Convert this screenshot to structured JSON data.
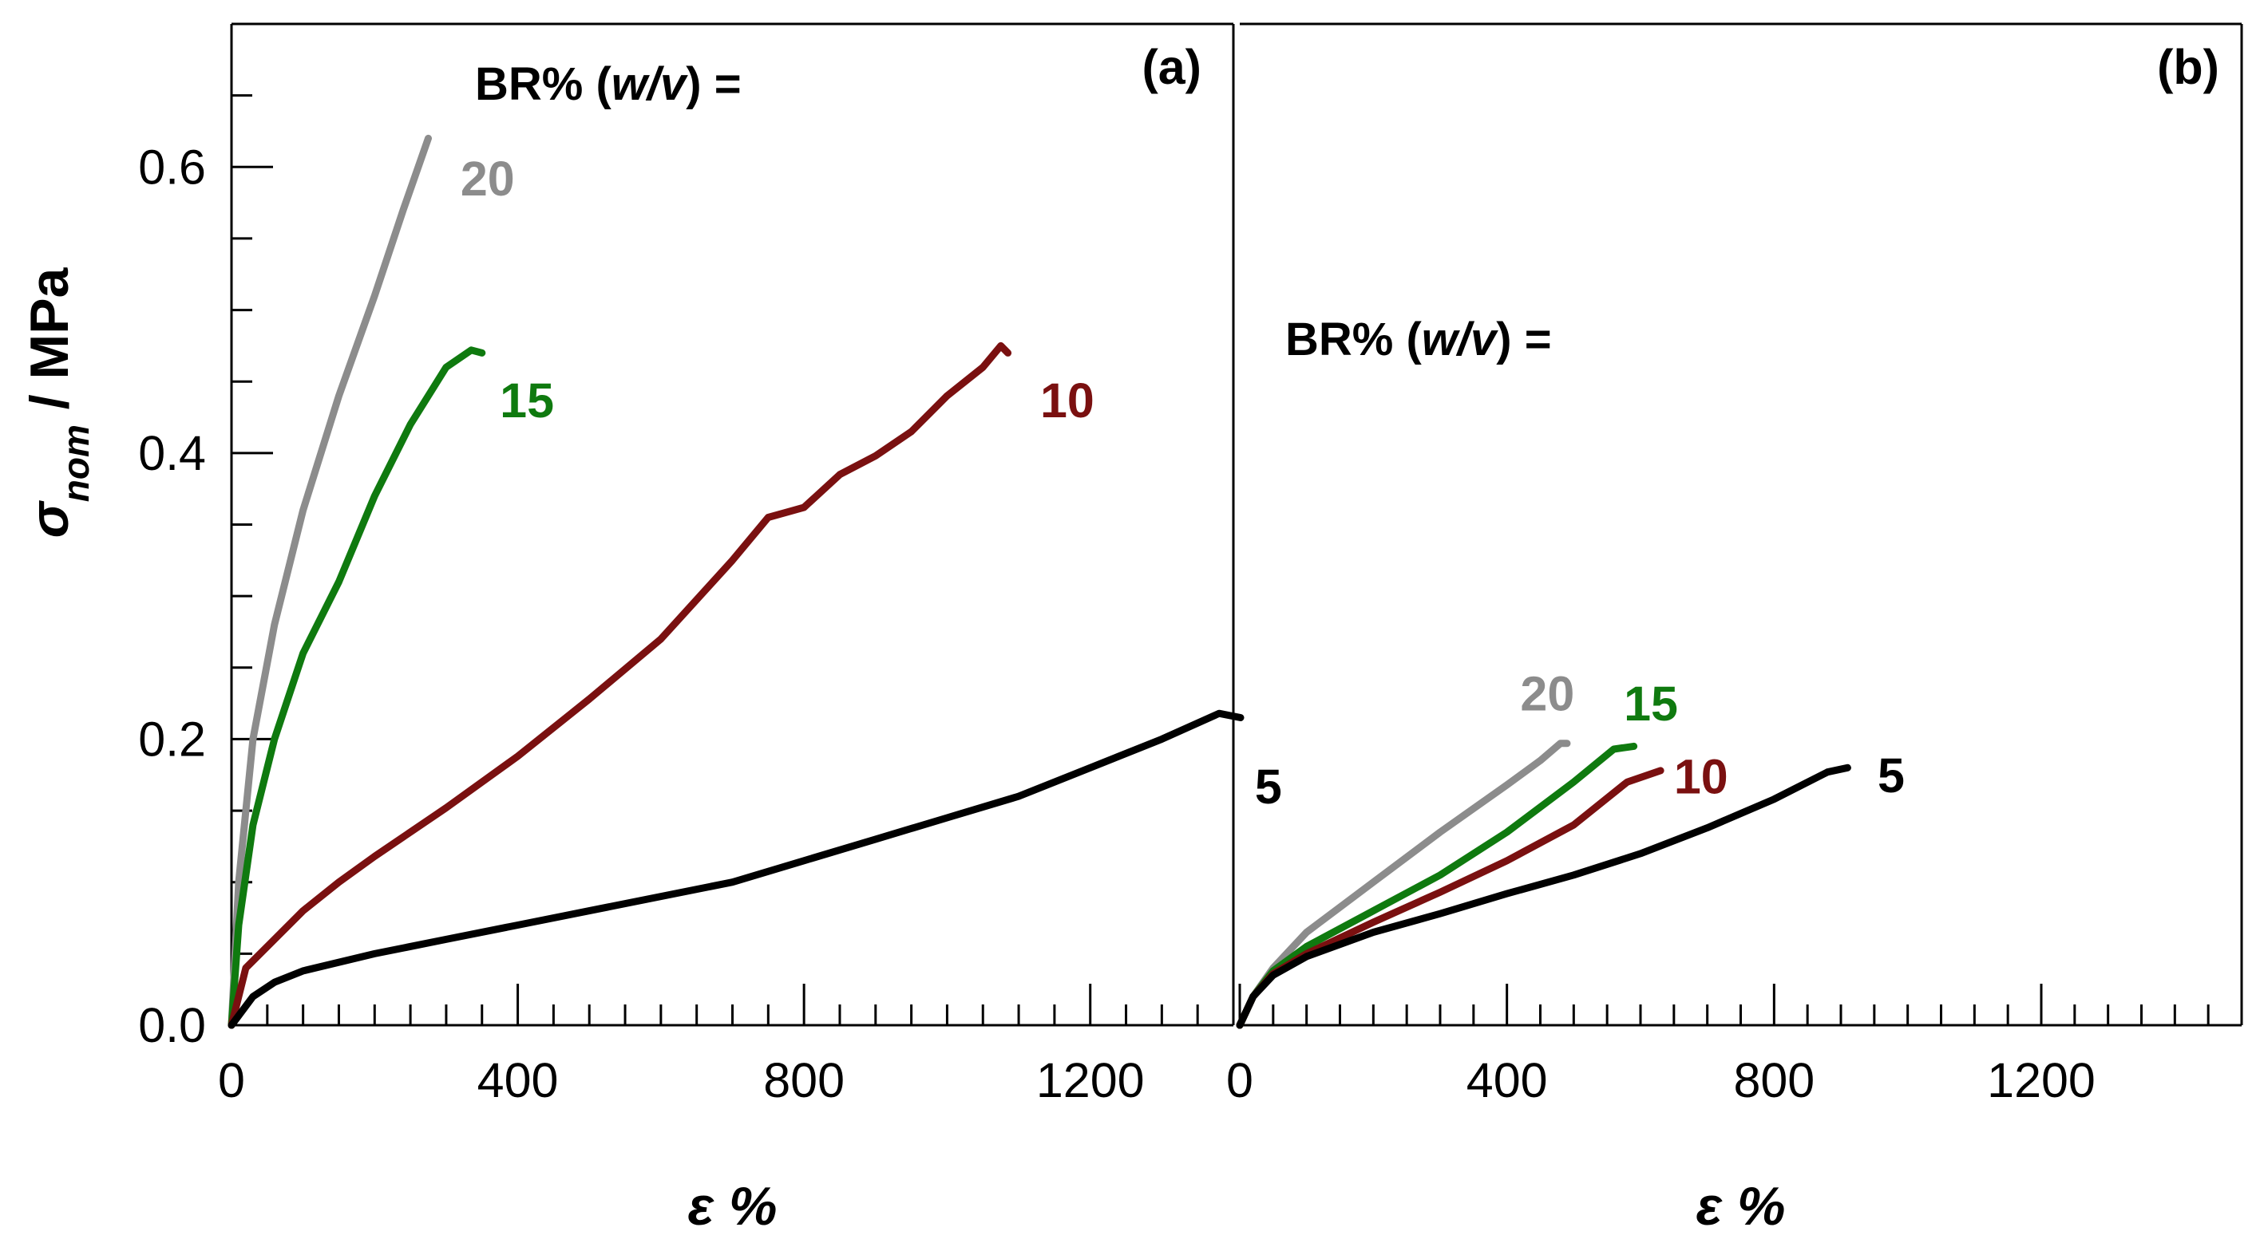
{
  "chart_data": [
    {
      "type": "line",
      "panel_label": "(a)",
      "legend_title": {
        "prefix": "BR% (",
        "italic": "w/v",
        "suffix": ") ="
      },
      "xlabel": "ε %",
      "ylabel": {
        "symbol": "σ",
        "subscript": "nom",
        "rest": " /  MPa"
      },
      "xlim": [
        0,
        1400
      ],
      "ylim": [
        0,
        0.7
      ],
      "xticks": [
        0,
        400,
        800,
        1200
      ],
      "xtick_labels": [
        "0",
        "400",
        "800",
        "1200"
      ],
      "yticks": [
        0.0,
        0.2,
        0.4,
        0.6
      ],
      "ytick_labels": [
        "0.0",
        "0.2",
        "0.4",
        "0.6"
      ],
      "series": [
        {
          "name": "20",
          "label": "20",
          "color": "#8c8c8c",
          "label_at": [
            320,
            0.58
          ],
          "points": [
            [
              0,
              0
            ],
            [
              10,
              0.1
            ],
            [
              30,
              0.2
            ],
            [
              60,
              0.28
            ],
            [
              100,
              0.36
            ],
            [
              150,
              0.44
            ],
            [
              200,
              0.51
            ],
            [
              240,
              0.57
            ],
            [
              275,
              0.62
            ]
          ]
        },
        {
          "name": "15",
          "label": "15",
          "color": "#0f7a0f",
          "label_at": [
            375,
            0.425
          ],
          "points": [
            [
              0,
              0
            ],
            [
              10,
              0.07
            ],
            [
              30,
              0.14
            ],
            [
              60,
              0.2
            ],
            [
              100,
              0.26
            ],
            [
              150,
              0.31
            ],
            [
              200,
              0.37
            ],
            [
              250,
              0.42
            ],
            [
              300,
              0.46
            ],
            [
              335,
              0.472
            ],
            [
              350,
              0.47
            ]
          ]
        },
        {
          "name": "10",
          "label": "10",
          "color": "#7a1010",
          "label_at": [
            1130,
            0.425
          ],
          "points": [
            [
              0,
              0
            ],
            [
              20,
              0.04
            ],
            [
              60,
              0.06
            ],
            [
              100,
              0.08
            ],
            [
              150,
              0.1
            ],
            [
              200,
              0.118
            ],
            [
              300,
              0.152
            ],
            [
              400,
              0.188
            ],
            [
              500,
              0.228
            ],
            [
              600,
              0.27
            ],
            [
              700,
              0.325
            ],
            [
              750,
              0.355
            ],
            [
              800,
              0.362
            ],
            [
              850,
              0.385
            ],
            [
              900,
              0.398
            ],
            [
              950,
              0.415
            ],
            [
              1000,
              0.44
            ],
            [
              1050,
              0.46
            ],
            [
              1075,
              0.475
            ],
            [
              1085,
              0.47
            ]
          ]
        },
        {
          "name": "5",
          "label": "5",
          "color": "#000000",
          "label_at": [
            1430,
            0.155
          ],
          "points": [
            [
              0,
              0
            ],
            [
              30,
              0.02
            ],
            [
              60,
              0.03
            ],
            [
              100,
              0.038
            ],
            [
              200,
              0.05
            ],
            [
              300,
              0.06
            ],
            [
              400,
              0.07
            ],
            [
              500,
              0.08
            ],
            [
              600,
              0.09
            ],
            [
              700,
              0.1
            ],
            [
              800,
              0.115
            ],
            [
              900,
              0.13
            ],
            [
              1000,
              0.145
            ],
            [
              1100,
              0.16
            ],
            [
              1200,
              0.18
            ],
            [
              1300,
              0.2
            ],
            [
              1380,
              0.218
            ],
            [
              1410,
              0.215
            ]
          ]
        }
      ]
    },
    {
      "type": "line",
      "panel_label": "(b)",
      "legend_title": {
        "prefix": "BR% (",
        "italic": "w/v",
        "suffix": ") ="
      },
      "xlabel": "ε %",
      "xlim": [
        0,
        1500
      ],
      "ylim": [
        0,
        0.7
      ],
      "xticks": [
        0,
        400,
        800,
        1200
      ],
      "xtick_labels": [
        "0",
        "400",
        "800",
        "1200"
      ],
      "series": [
        {
          "name": "20",
          "label": "20",
          "color": "#8c8c8c",
          "label_at": [
            420,
            0.22
          ],
          "points": [
            [
              0,
              0
            ],
            [
              20,
              0.02
            ],
            [
              50,
              0.04
            ],
            [
              100,
              0.065
            ],
            [
              200,
              0.1
            ],
            [
              300,
              0.135
            ],
            [
              400,
              0.168
            ],
            [
              450,
              0.185
            ],
            [
              480,
              0.197
            ],
            [
              490,
              0.197
            ]
          ]
        },
        {
          "name": "15",
          "label": "15",
          "color": "#0f7a0f",
          "label_at": [
            575,
            0.213
          ],
          "points": [
            [
              0,
              0
            ],
            [
              20,
              0.02
            ],
            [
              50,
              0.038
            ],
            [
              100,
              0.055
            ],
            [
              200,
              0.08
            ],
            [
              300,
              0.105
            ],
            [
              400,
              0.135
            ],
            [
              500,
              0.17
            ],
            [
              560,
              0.193
            ],
            [
              590,
              0.195
            ]
          ]
        },
        {
          "name": "10",
          "label": "10",
          "color": "#7a1010",
          "label_at": [
            650,
            0.162
          ],
          "points": [
            [
              0,
              0
            ],
            [
              20,
              0.02
            ],
            [
              50,
              0.036
            ],
            [
              100,
              0.05
            ],
            [
              200,
              0.072
            ],
            [
              300,
              0.093
            ],
            [
              400,
              0.115
            ],
            [
              500,
              0.14
            ],
            [
              580,
              0.17
            ],
            [
              630,
              0.178
            ]
          ]
        },
        {
          "name": "5",
          "label": "5",
          "color": "#000000",
          "label_at": [
            955,
            0.163
          ],
          "points": [
            [
              0,
              0
            ],
            [
              20,
              0.02
            ],
            [
              50,
              0.035
            ],
            [
              100,
              0.048
            ],
            [
              200,
              0.065
            ],
            [
              300,
              0.078
            ],
            [
              400,
              0.092
            ],
            [
              500,
              0.105
            ],
            [
              600,
              0.12
            ],
            [
              700,
              0.138
            ],
            [
              800,
              0.158
            ],
            [
              880,
              0.177
            ],
            [
              910,
              0.18
            ]
          ]
        }
      ]
    }
  ]
}
